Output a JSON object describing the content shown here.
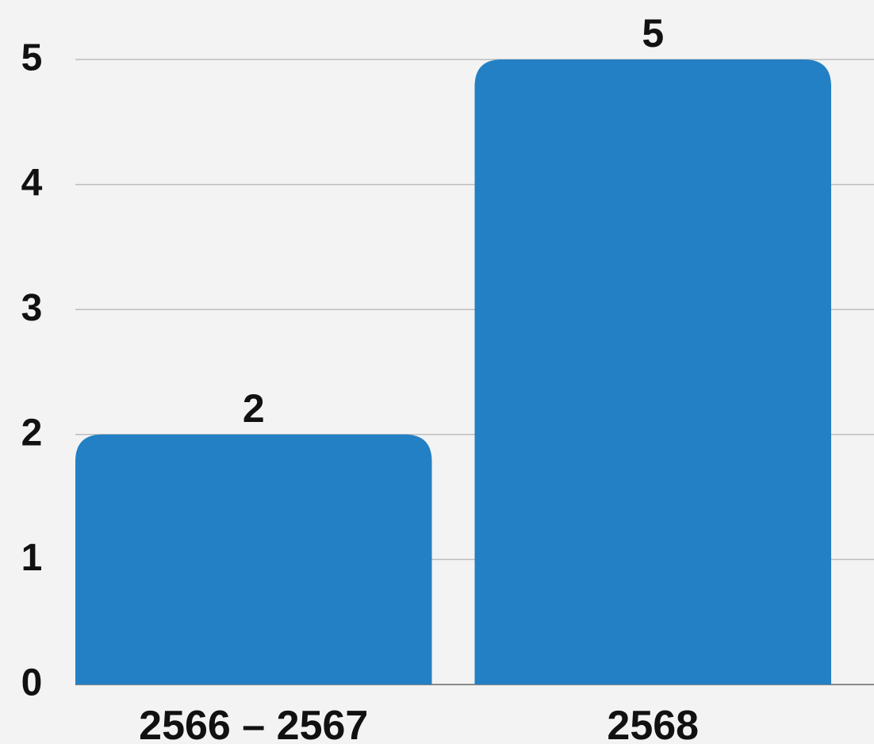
{
  "chart_data": {
    "type": "bar",
    "title": "",
    "xlabel": "",
    "ylabel": "",
    "categories": [
      "2566 – 2567",
      "2568"
    ],
    "values": [
      2,
      5
    ],
    "data_labels": [
      "2",
      "5"
    ],
    "y_ticks": [
      0,
      1,
      2,
      3,
      4,
      5
    ],
    "y_tick_labels": [
      "0",
      "1",
      "2",
      "3",
      "4",
      "5"
    ],
    "ylim": [
      0,
      5
    ],
    "grid": true,
    "legend": "none",
    "colors": {
      "bar": "#2380c4",
      "background": "#f3f3f3",
      "grid": "#bdbdbd",
      "text": "#111111"
    }
  }
}
